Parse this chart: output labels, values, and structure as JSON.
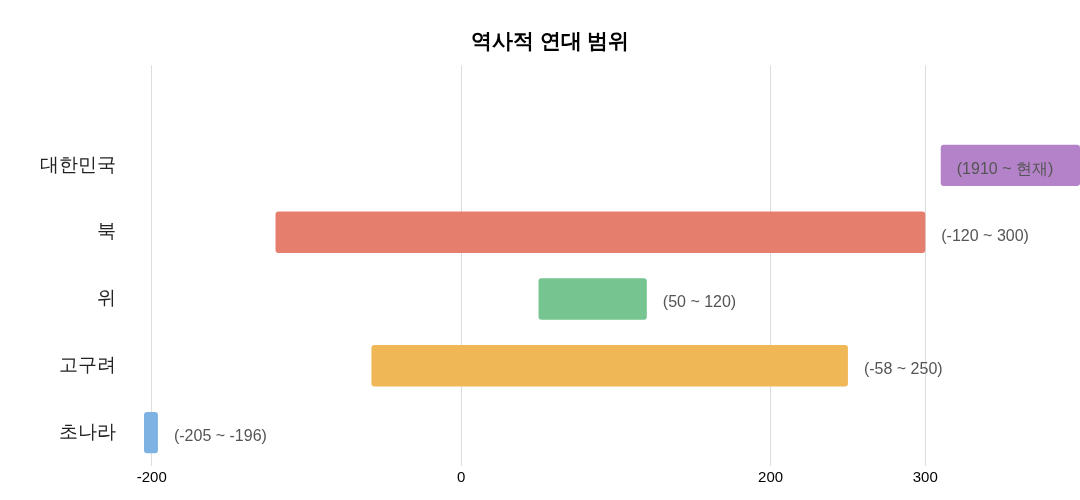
{
  "chart_data": {
    "type": "bar",
    "orientation": "horizontal",
    "title": "역사적 연대 범위",
    "categories": [
      null,
      "대한민국",
      "북",
      "위",
      "고구려",
      "초나라"
    ],
    "base": [
      null,
      310,
      -120,
      50,
      -58,
      -205
    ],
    "values": [
      null,
      90,
      420,
      70,
      308,
      9
    ],
    "colors": [
      "#b482c8",
      "#b482c8",
      "#e67e6e",
      "#76c48f",
      "#f0b757",
      "#7eb2e2"
    ],
    "annotations": [
      "(1910 ~ 현재)"
    ],
    "value_labels": [
      null,
      null,
      "(-120 ~ 300)",
      "(50 ~ 120)",
      "(-58 ~ 250)",
      "(-205 ~ -196)"
    ],
    "xlim": [
      -205,
      400
    ],
    "xticks": [
      -200,
      0,
      200,
      300
    ],
    "grid": "x",
    "legend": false
  }
}
